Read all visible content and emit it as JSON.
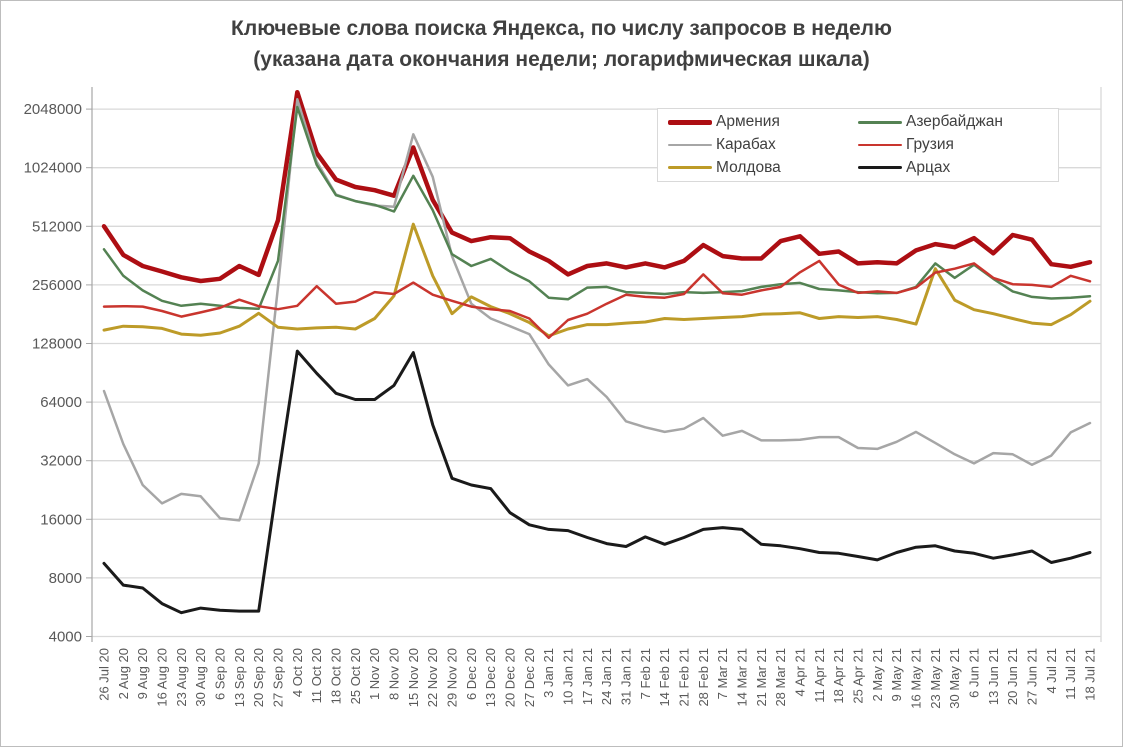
{
  "title": {
    "line1": "Ключевые слова поиска Яндекса, по числу запросов в неделю",
    "line2": "(указана дата окончания недели; логарифмическая шкала)"
  },
  "chart_data": {
    "type": "line",
    "title": "Ключевые слова поиска Яндекса, по числу запросов в неделю (указана дата окончания недели; логарифмическая шкала)",
    "xlabel": "",
    "ylabel": "",
    "y_scale": "log2",
    "grid": "horizontal",
    "legend_position": "top-right-inside",
    "y_ticks": [
      4000,
      8000,
      16000,
      32000,
      64000,
      128000,
      256000,
      512000,
      1024000,
      2048000
    ],
    "ylim": [
      4000,
      2600000
    ],
    "x": [
      "26 Jul 20",
      "2 Aug 20",
      "9 Aug 20",
      "16 Aug 20",
      "23 Aug 20",
      "30 Aug 20",
      "6 Sep 20",
      "13 Sep 20",
      "20 Sep 20",
      "27 Sep 20",
      "4 Oct 20",
      "11 Oct 20",
      "18 Oct 20",
      "25 Oct 20",
      "1 Nov 20",
      "8 Nov 20",
      "15 Nov 20",
      "22 Nov 20",
      "29 Nov 20",
      "6 Dec 20",
      "13 Dec 20",
      "20 Dec 20",
      "27 Dec 20",
      "3 Jan 21",
      "10 Jan 21",
      "17 Jan 21",
      "24 Jan 21",
      "31 Jan 21",
      "7 Feb 21",
      "14 Feb 21",
      "21 Feb 21",
      "28 Feb 21",
      "7 Mar 21",
      "14 Mar 21",
      "21 Mar 21",
      "28 Mar 21",
      "4 Apr 21",
      "11 Apr 21",
      "18 Apr 21",
      "25 Apr 21",
      "2 May 21",
      "9 May 21",
      "16 May 21",
      "23 May 21",
      "30 May 21",
      "6 Jun 21",
      "13 Jun 21",
      "20 Jun 21",
      "27 Jun 21",
      "4 Jul 21",
      "11 Jul 21",
      "18 Jul 21"
    ],
    "series": [
      {
        "key": "armenia",
        "name": "Армения",
        "color": "#AD0E13",
        "thickness": 4.5,
        "values": [
          512000,
          365000,
          320000,
          300000,
          280000,
          268000,
          275000,
          320000,
          288000,
          550000,
          2500000,
          1220000,
          890000,
          815000,
          785000,
          735000,
          1300000,
          700000,
          475000,
          430000,
          450000,
          445000,
          380000,
          340000,
          290000,
          320000,
          330000,
          315000,
          330000,
          315000,
          340000,
          410000,
          360000,
          350000,
          350000,
          430000,
          455000,
          370000,
          380000,
          330000,
          335000,
          330000,
          385000,
          415000,
          400000,
          445000,
          372000,
          462000,
          437000,
          327000,
          317000,
          335000
        ]
      },
      {
        "key": "karabakh",
        "name": "Карабах",
        "color": "#A6A6A6",
        "thickness": 2.5,
        "values": [
          73000,
          39000,
          24000,
          19300,
          21600,
          21000,
          16200,
          15800,
          31000,
          250000,
          2300000,
          1100000,
          745000,
          690000,
          655000,
          645000,
          1520000,
          920000,
          360000,
          205000,
          172000,
          157000,
          143000,
          100000,
          78000,
          84000,
          68000,
          51000,
          47500,
          45000,
          46700,
          53000,
          43000,
          45500,
          40700,
          40700,
          41000,
          42300,
          42300,
          37200,
          36800,
          40000,
          45000,
          39500,
          34500,
          31000,
          35000,
          34500,
          30500,
          34000,
          44700,
          50000
        ]
      },
      {
        "key": "moldova",
        "name": "Молдова",
        "color": "#BD9B28",
        "thickness": 3,
        "values": [
          150000,
          157000,
          156000,
          153000,
          143000,
          141000,
          145000,
          157000,
          183000,
          155000,
          152000,
          154000,
          155000,
          152000,
          172000,
          225000,
          525000,
          285000,
          182000,
          222000,
          198000,
          182000,
          164000,
          140000,
          152000,
          160000,
          160000,
          163000,
          165000,
          172000,
          170000,
          172000,
          174000,
          176000,
          181000,
          182000,
          184000,
          172000,
          176000,
          174000,
          176000,
          170000,
          161000,
          310000,
          214000,
          191000,
          182000,
          172000,
          163000,
          160000,
          180000,
          211000
        ]
      },
      {
        "key": "azerbaijan",
        "name": "Азербайджан",
        "color": "#548253",
        "thickness": 2.5,
        "values": [
          390000,
          285000,
          240000,
          212000,
          200000,
          205000,
          200000,
          195000,
          193000,
          340000,
          2100000,
          1060000,
          740000,
          690000,
          660000,
          610000,
          930000,
          620000,
          368000,
          320000,
          348000,
          300000,
          267000,
          220000,
          216000,
          248000,
          250000,
          235000,
          233000,
          230000,
          235000,
          233000,
          235000,
          238000,
          250000,
          258000,
          262000,
          244000,
          240000,
          235000,
          232000,
          233000,
          250000,
          330000,
          278000,
          325000,
          275000,
          237000,
          222000,
          218000,
          220000,
          224000
        ]
      },
      {
        "key": "georgia",
        "name": "Грузия",
        "color": "#C9352E",
        "thickness": 2.5,
        "values": [
          198000,
          199000,
          198000,
          188000,
          176000,
          185000,
          195000,
          215000,
          199000,
          192000,
          200000,
          252000,
          205000,
          210000,
          235000,
          230000,
          263000,
          228000,
          212000,
          198000,
          192000,
          188000,
          172000,
          137000,
          169000,
          182000,
          205000,
          228000,
          222000,
          220000,
          230000,
          290000,
          232000,
          228000,
          240000,
          250000,
          297000,
          340000,
          257000,
          233000,
          237000,
          233000,
          248000,
          296000,
          310000,
          330000,
          278000,
          258000,
          256000,
          250000,
          285000,
          267000
        ]
      },
      {
        "key": "artsakh",
        "name": "Арцах",
        "color": "#1A1A1A",
        "thickness": 3,
        "values": [
          9500,
          7350,
          7100,
          5900,
          5300,
          5600,
          5450,
          5400,
          5400,
          26000,
          117000,
          90000,
          71000,
          66000,
          66000,
          78000,
          115000,
          49000,
          26000,
          24000,
          23000,
          17300,
          15000,
          14200,
          14000,
          12900,
          12000,
          11600,
          13000,
          11900,
          12900,
          14200,
          14500,
          14200,
          11900,
          11700,
          11300,
          10800,
          10700,
          10300,
          9900,
          10800,
          11500,
          11700,
          11000,
          10700,
          10100,
          10500,
          11000,
          9600,
          10100,
          10800
        ]
      }
    ]
  }
}
